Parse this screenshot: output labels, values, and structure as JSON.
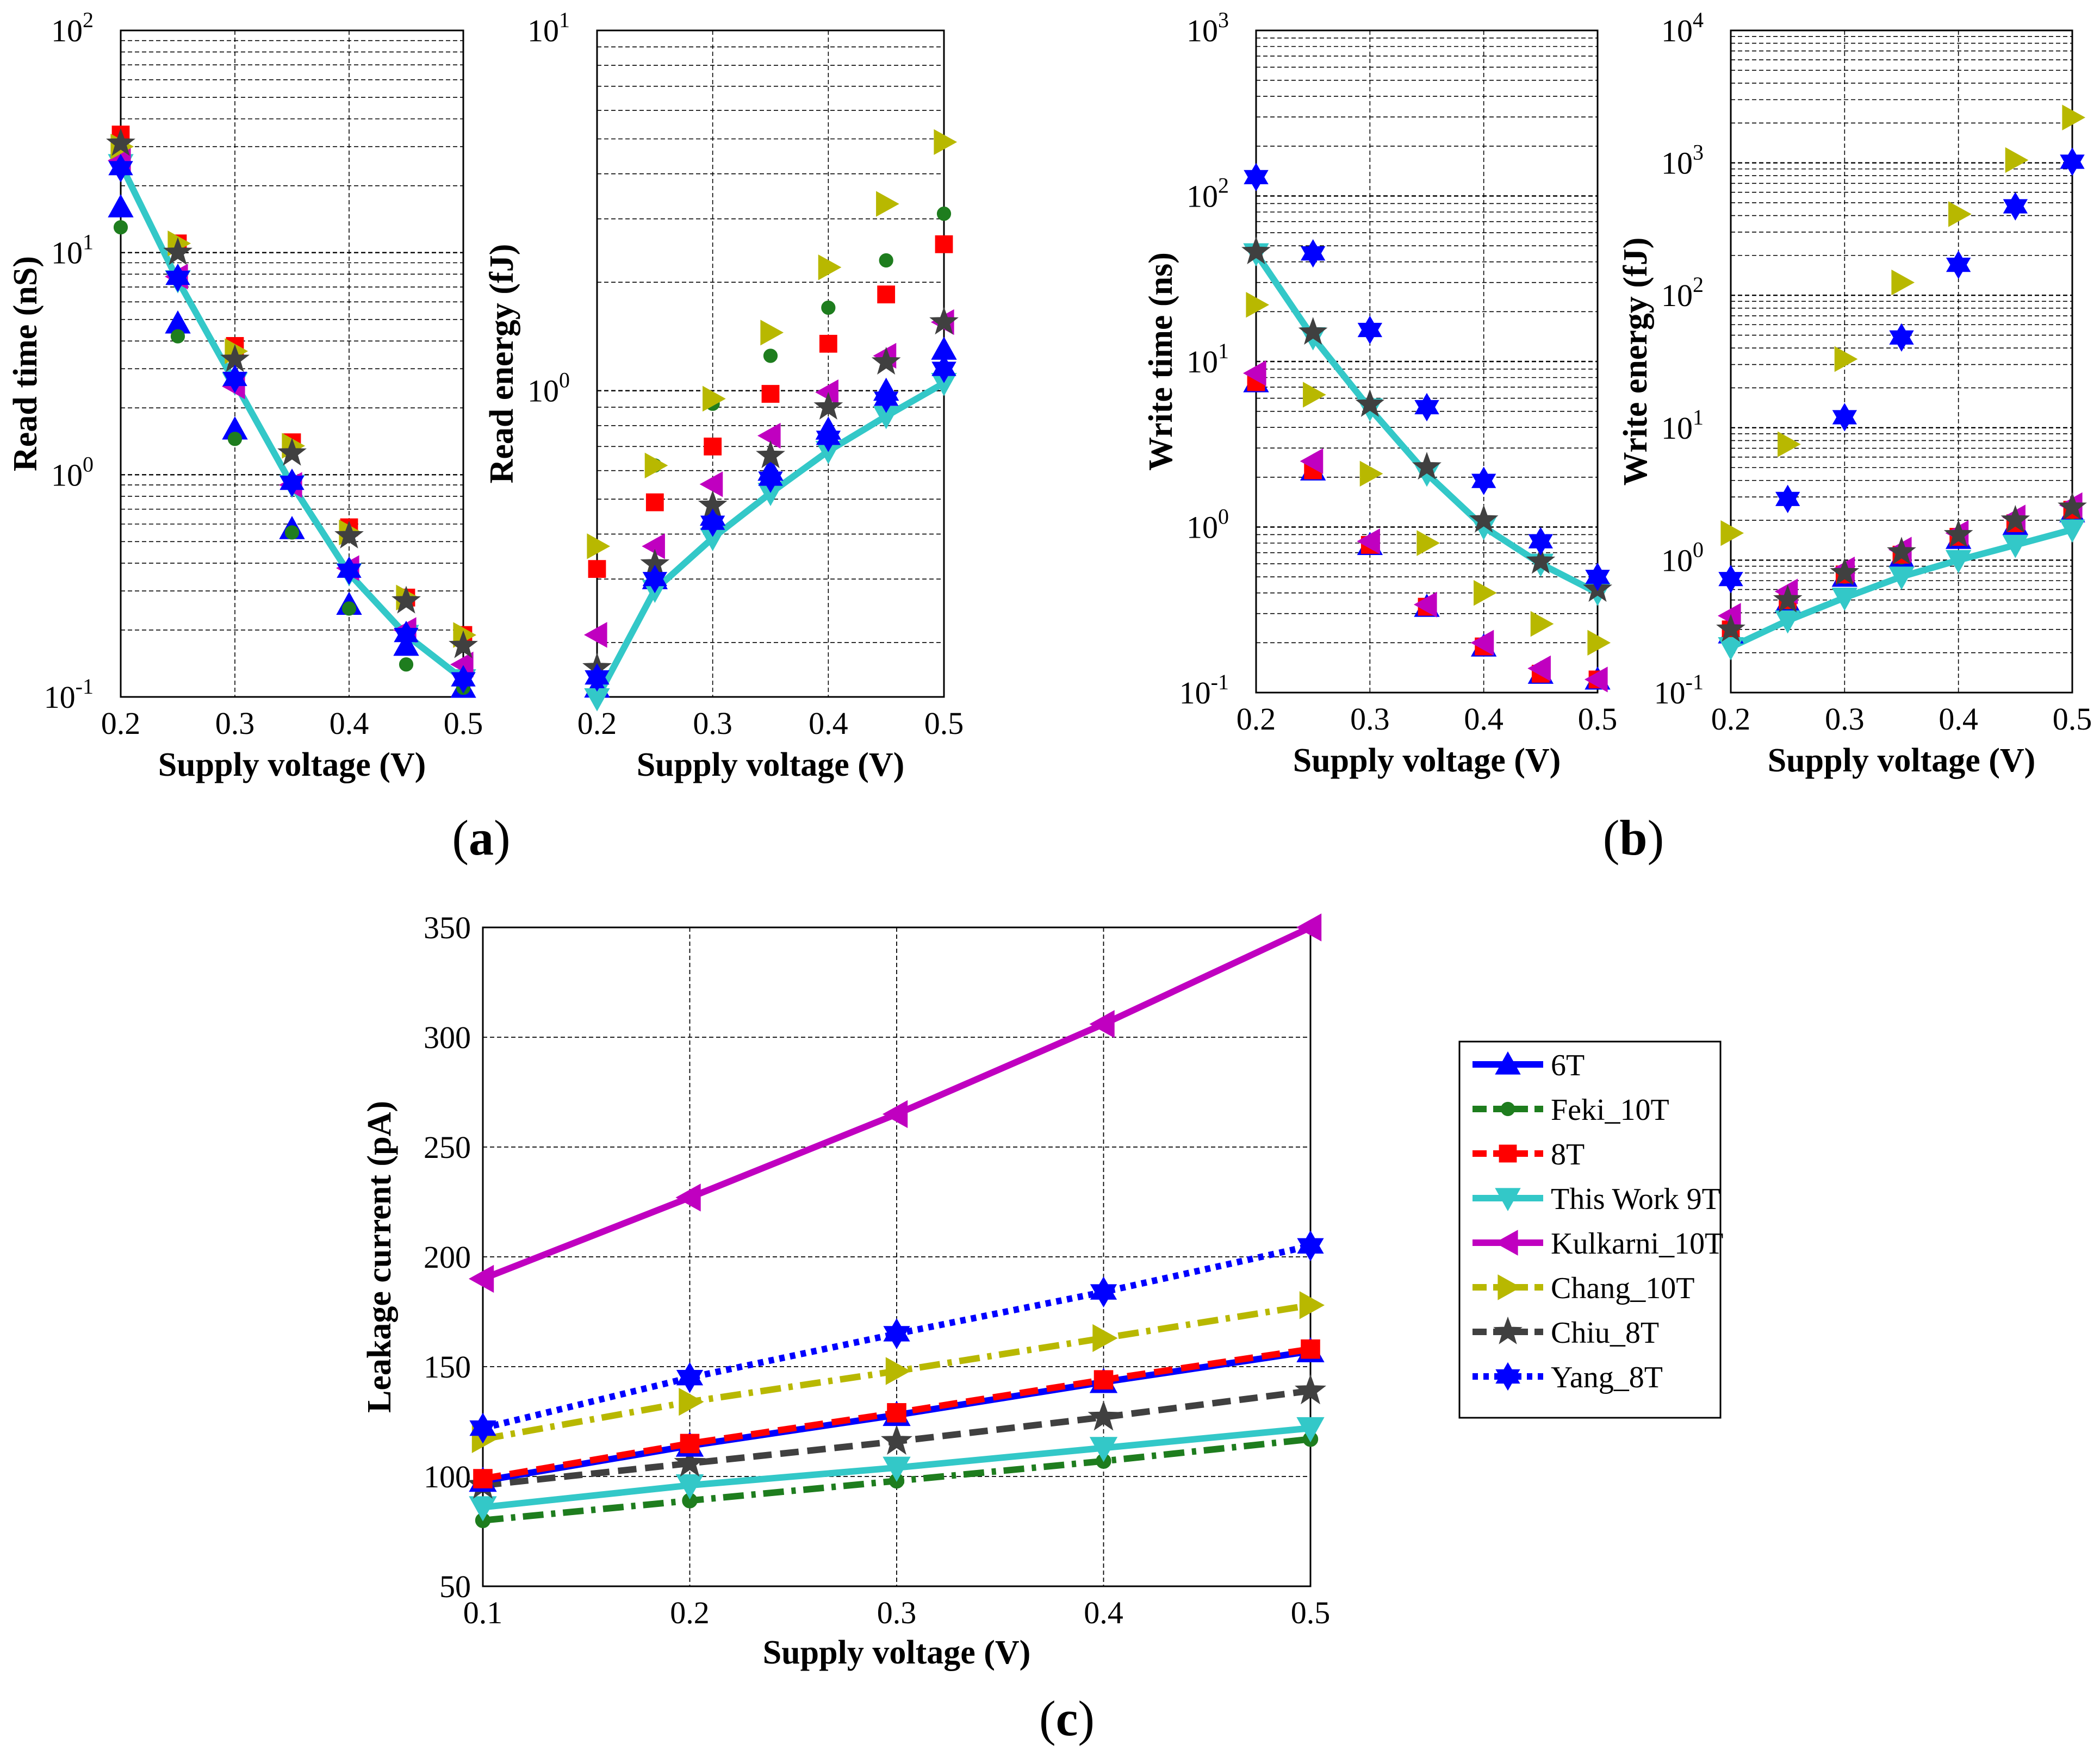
{
  "figure": {
    "panel_labels": [
      {
        "open": "(",
        "letter": "a",
        "close": ")"
      },
      {
        "open": "(",
        "letter": "b",
        "close": ")"
      },
      {
        "open": "(",
        "letter": "c",
        "close": ")"
      }
    ]
  },
  "series_styles": [
    {
      "name": "6T",
      "color": "#0000ff",
      "marker": "triangle-up",
      "dash": "solid"
    },
    {
      "name": "Feki_10T",
      "color": "#1e7d1e",
      "marker": "dot",
      "dash": "dashdot"
    },
    {
      "name": "8T",
      "color": "#ff0000",
      "marker": "square",
      "dash": "dashed"
    },
    {
      "name": "This Work 9T",
      "color": "#33c8c8",
      "marker": "triangle-down",
      "dash": "solid"
    },
    {
      "name": "Kulkarni_10T",
      "color": "#c000c0",
      "marker": "triangle-left",
      "dash": "solid"
    },
    {
      "name": "Chang_10T",
      "color": "#b8b800",
      "marker": "triangle-right",
      "dash": "dashdot"
    },
    {
      "name": "Chiu_8T",
      "color": "#404040",
      "marker": "star",
      "dash": "dashed"
    },
    {
      "name": "Yang_8T",
      "color": "#0000ff",
      "marker": "hexagram",
      "dash": "dotted"
    }
  ],
  "chart_data": [
    {
      "id": "read_time",
      "panel": "a",
      "type": "scatter",
      "scale": "log",
      "title": "",
      "xlabel": "Supply voltage (V)",
      "ylabel": "Read time (nS)",
      "xlim": [
        0.2,
        0.5
      ],
      "ylim_exp": [
        -1,
        2
      ],
      "x_ticks": [
        "0.2",
        "0.3",
        "0.4",
        "0.5"
      ],
      "x": [
        0.2,
        0.25,
        0.3,
        0.35,
        0.4,
        0.45,
        0.5
      ],
      "line_series": "This Work 9T",
      "series": [
        {
          "name": "6T",
          "values": [
            16,
            4.8,
            1.6,
            0.57,
            0.26,
            0.17,
            0.11
          ]
        },
        {
          "name": "Feki_10T",
          "values": [
            13,
            4.2,
            1.45,
            0.55,
            0.25,
            0.14,
            0.11
          ]
        },
        {
          "name": "8T",
          "values": [
            34,
            11,
            3.8,
            1.4,
            0.58,
            0.28,
            0.19
          ]
        },
        {
          "name": "This Work 9T",
          "values": [
            25,
            7.5,
            2.6,
            0.9,
            0.36,
            0.19,
            0.12
          ]
        },
        {
          "name": "Kulkarni_10T",
          "values": [
            26,
            7.8,
            2.5,
            0.9,
            0.38,
            0.2,
            0.14
          ]
        },
        {
          "name": "Chang_10T",
          "values": [
            30,
            11,
            3.6,
            1.35,
            0.55,
            0.28,
            0.19
          ]
        },
        {
          "name": "Chiu_8T",
          "values": [
            31,
            10,
            3.3,
            1.25,
            0.53,
            0.27,
            0.17
          ]
        },
        {
          "name": "Yang_8T",
          "values": [
            24,
            7.7,
            2.7,
            0.92,
            0.37,
            0.19,
            0.12
          ]
        }
      ]
    },
    {
      "id": "read_energy",
      "panel": "a",
      "type": "scatter",
      "scale": "log",
      "title": "",
      "xlabel": "Supply voltage (V)",
      "ylabel": "Read energy (fJ)",
      "xlim": [
        0.2,
        0.5
      ],
      "ylim_exp": [
        -0.85,
        1
      ],
      "x_ticks": [
        "0.2",
        "0.3",
        "0.4",
        "0.5"
      ],
      "y_tick_exps": [
        0,
        1
      ],
      "x": [
        0.2,
        0.25,
        0.3,
        0.35,
        0.4,
        0.45,
        0.5
      ],
      "line_series": "This Work 9T",
      "series": [
        {
          "name": "6T",
          "values": [
            0.15,
            0.3,
            0.45,
            0.6,
            0.78,
            1.0,
            1.3
          ]
        },
        {
          "name": "Feki_10T",
          "values": [
            0.16,
            0.62,
            0.92,
            1.25,
            1.7,
            2.3,
            3.1
          ]
        },
        {
          "name": "8T",
          "values": [
            0.32,
            0.49,
            0.7,
            0.98,
            1.35,
            1.85,
            2.55
          ]
        },
        {
          "name": "This Work 9T",
          "values": [
            0.14,
            0.28,
            0.39,
            0.52,
            0.68,
            0.85,
            1.05
          ]
        },
        {
          "name": "Kulkarni_10T",
          "values": [
            0.21,
            0.37,
            0.55,
            0.75,
            0.99,
            1.25,
            1.55
          ]
        },
        {
          "name": "Chang_10T",
          "values": [
            0.37,
            0.62,
            0.95,
            1.45,
            2.2,
            3.3,
            4.9
          ]
        },
        {
          "name": "Chiu_8T",
          "values": [
            0.17,
            0.33,
            0.48,
            0.66,
            0.9,
            1.2,
            1.55
          ]
        },
        {
          "name": "Yang_8T",
          "values": [
            0.16,
            0.3,
            0.43,
            0.57,
            0.74,
            0.95,
            1.15
          ]
        }
      ]
    },
    {
      "id": "write_time",
      "panel": "b",
      "type": "scatter",
      "scale": "log",
      "title": "",
      "xlabel": "Supply voltage (V)",
      "ylabel": "Write time (ns)",
      "xlim": [
        0.2,
        0.5
      ],
      "ylim_exp": [
        -1,
        3
      ],
      "x_ticks": [
        "0.2",
        "0.3",
        "0.4",
        "0.5"
      ],
      "x": [
        0.2,
        0.25,
        0.3,
        0.35,
        0.4,
        0.45,
        0.5
      ],
      "line_series": "This Work 9T",
      "series": [
        {
          "name": "6T",
          "values": [
            7.5,
            2.2,
            0.78,
            0.33,
            0.19,
            0.13,
            0.12
          ]
        },
        {
          "name": "Feki_10T",
          "values": [
            7.5,
            2.2,
            0.78,
            0.33,
            0.19,
            0.13,
            0.12
          ]
        },
        {
          "name": "8T",
          "values": [
            7.5,
            2.2,
            0.78,
            0.33,
            0.19,
            0.13,
            0.12
          ]
        },
        {
          "name": "This Work 9T",
          "values": [
            45,
            14,
            5.2,
            2.1,
            1.0,
            0.6,
            0.4
          ]
        },
        {
          "name": "Kulkarni_10T",
          "values": [
            8.5,
            2.5,
            0.82,
            0.34,
            0.2,
            0.14,
            0.12
          ]
        },
        {
          "name": "Chang_10T",
          "values": [
            22,
            6.3,
            2.1,
            0.8,
            0.4,
            0.26,
            0.2
          ]
        },
        {
          "name": "Chiu_8T",
          "values": [
            46,
            15,
            5.5,
            2.3,
            1.1,
            0.62,
            0.42
          ]
        },
        {
          "name": "Yang_8T",
          "values": [
            130,
            45,
            15.5,
            5.3,
            1.9,
            0.82,
            0.5
          ]
        }
      ]
    },
    {
      "id": "write_energy",
      "panel": "b",
      "type": "scatter",
      "scale": "log",
      "title": "",
      "xlabel": "Supply voltage (V)",
      "ylabel": "Write energy (fJ)",
      "xlim": [
        0.2,
        0.5
      ],
      "ylim_exp": [
        -1,
        4
      ],
      "x_ticks": [
        "0.2",
        "0.3",
        "0.4",
        "0.5"
      ],
      "x": [
        0.2,
        0.25,
        0.3,
        0.35,
        0.4,
        0.45,
        0.5
      ],
      "line_series": "This Work 9T",
      "series": [
        {
          "name": "6T",
          "values": [
            0.28,
            0.48,
            0.75,
            1.05,
            1.45,
            1.85,
            2.3
          ]
        },
        {
          "name": "Feki_10T",
          "values": [
            0.28,
            0.48,
            0.75,
            1.05,
            1.45,
            1.85,
            2.3
          ]
        },
        {
          "name": "8T",
          "values": [
            0.3,
            0.5,
            0.78,
            1.1,
            1.5,
            1.9,
            2.4
          ]
        },
        {
          "name": "This Work 9T",
          "values": [
            0.22,
            0.35,
            0.52,
            0.75,
            1.0,
            1.3,
            1.7
          ]
        },
        {
          "name": "Kulkarni_10T",
          "values": [
            0.38,
            0.58,
            0.85,
            1.2,
            1.6,
            2.1,
            2.6
          ]
        },
        {
          "name": "Chang_10T",
          "values": [
            1.6,
            7.5,
            33,
            125,
            410,
            1050,
            2200
          ]
        },
        {
          "name": "Chiu_8T",
          "values": [
            0.3,
            0.5,
            0.8,
            1.15,
            1.55,
            2.0,
            2.5
          ]
        },
        {
          "name": "Yang_8T",
          "values": [
            0.72,
            2.9,
            12,
            48,
            170,
            470,
            1020
          ]
        }
      ]
    },
    {
      "id": "leakage_current",
      "panel": "c",
      "type": "line",
      "scale": "linear",
      "title": "",
      "xlabel": "Supply voltage (V)",
      "ylabel": "Leakage current (pA)",
      "xlim": [
        0.1,
        0.5
      ],
      "ylim": [
        50,
        350
      ],
      "x_ticks": [
        "0.1",
        "0.2",
        "0.3",
        "0.4",
        "0.5"
      ],
      "y_ticks": [
        "50",
        "100",
        "150",
        "200",
        "250",
        "300",
        "350"
      ],
      "x": [
        0.1,
        0.2,
        0.3,
        0.4,
        0.5
      ],
      "legend_position": "right",
      "series": [
        {
          "name": "6T",
          "values": [
            98,
            114,
            128,
            143,
            157
          ]
        },
        {
          "name": "Feki_10T",
          "values": [
            80,
            89,
            98,
            107,
            117
          ]
        },
        {
          "name": "8T",
          "values": [
            99,
            115,
            129,
            144,
            158
          ]
        },
        {
          "name": "This Work 9T",
          "values": [
            86,
            96,
            104,
            113,
            122
          ]
        },
        {
          "name": "Kulkarni_10T",
          "values": [
            190,
            227,
            265,
            306,
            350
          ]
        },
        {
          "name": "Chang_10T",
          "values": [
            117,
            134,
            148,
            163,
            178
          ]
        },
        {
          "name": "Chiu_8T",
          "values": [
            96,
            106,
            116,
            127,
            139
          ]
        },
        {
          "name": "Yang_8T",
          "values": [
            122,
            145,
            165,
            184,
            205
          ]
        }
      ]
    }
  ]
}
